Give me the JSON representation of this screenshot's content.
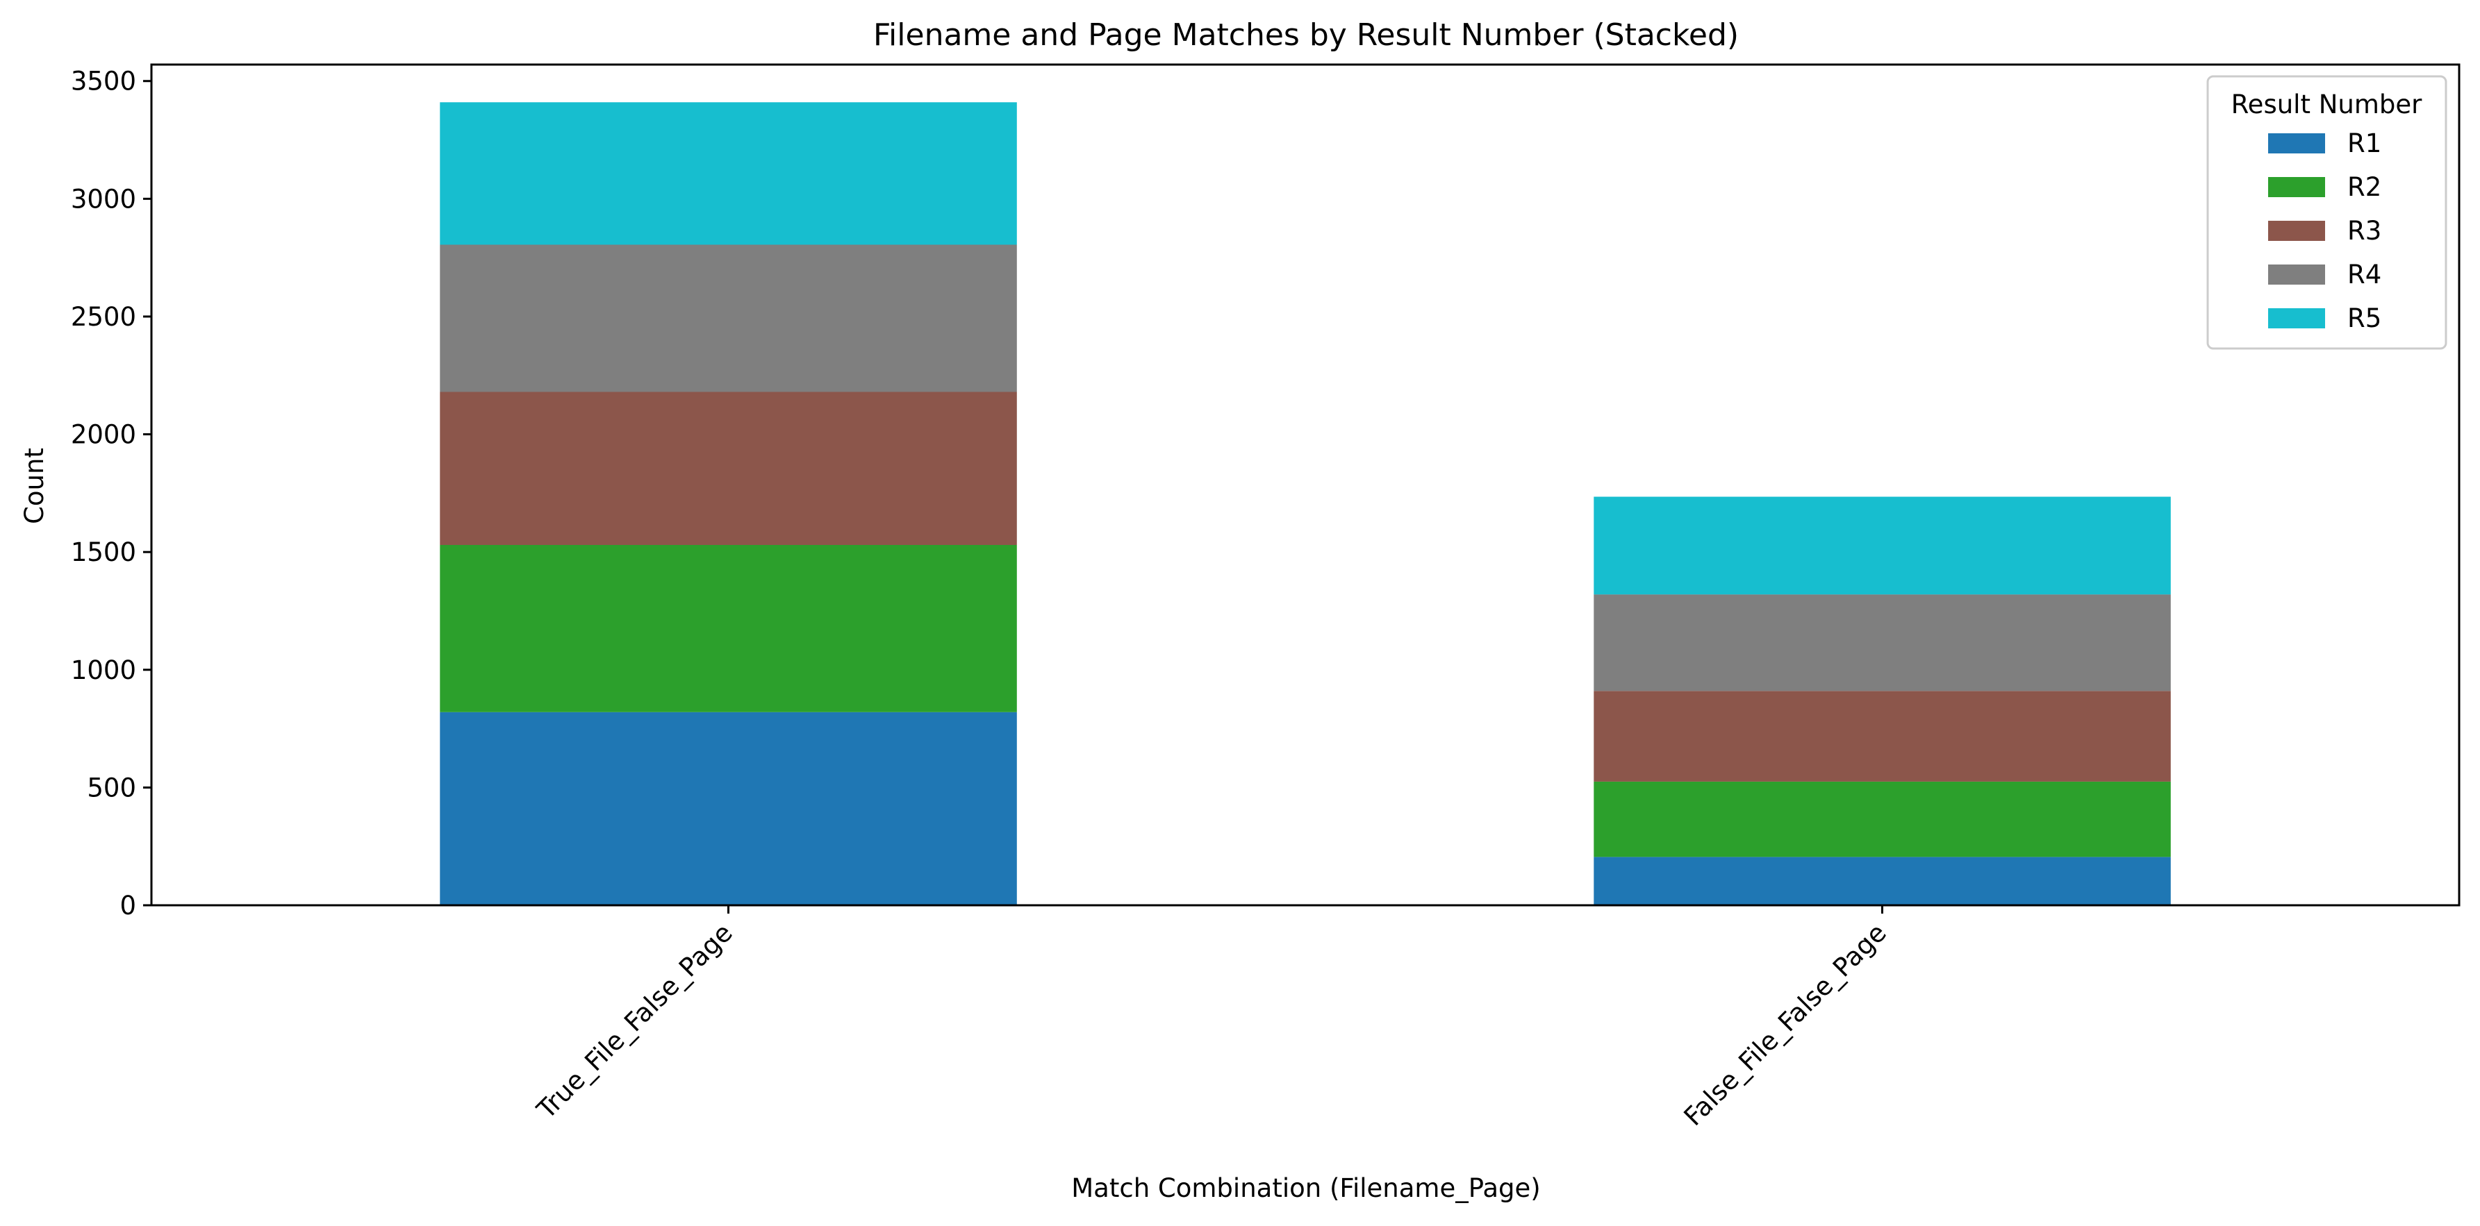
{
  "chart_data": {
    "type": "bar",
    "stacked": true,
    "title": "Filename and Page Matches by Result Number (Stacked)",
    "xlabel": "Match Combination (Filename_Page)",
    "ylabel": "Count",
    "ylim": [
      0,
      3570
    ],
    "yticks": [
      0,
      500,
      1000,
      1500,
      2000,
      2500,
      3000,
      3500
    ],
    "categories": [
      "True_File_False_Page",
      "False_File_False_Page"
    ],
    "series": [
      {
        "name": "R1",
        "color": "#1f77b4",
        "values": [
          820,
          205
        ]
      },
      {
        "name": "R2",
        "color": "#2ca02c",
        "values": [
          710,
          320
        ]
      },
      {
        "name": "R3",
        "color": "#8c564b",
        "values": [
          650,
          385
        ]
      },
      {
        "name": "R4",
        "color": "#7f7f7f",
        "values": [
          625,
          410
        ]
      },
      {
        "name": "R5",
        "color": "#17becf",
        "values": [
          605,
          415
        ]
      }
    ],
    "legend": {
      "title": "Result Number",
      "placement": "top-right"
    },
    "grid": false
  }
}
